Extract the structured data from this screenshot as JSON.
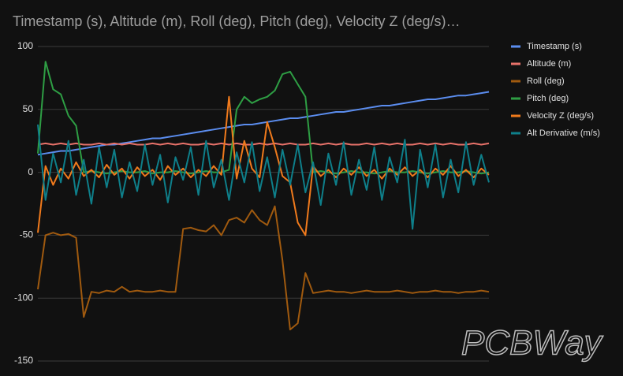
{
  "chart_data": {
    "type": "line",
    "title": "Timestamp (s), Altitude (m), Roll (deg), Pitch (deg), Velocity Z (deg/s)…",
    "ylim": [
      -150,
      100
    ],
    "yticks": [
      -150,
      -100,
      -50,
      0,
      50,
      100
    ],
    "grid": true,
    "legend": "right",
    "series": [
      {
        "name": "Timestamp (s)",
        "color": "#5b8def",
        "values": [
          14,
          15,
          16,
          17,
          17,
          18,
          19,
          20,
          21,
          22,
          22,
          23,
          24,
          25,
          26,
          27,
          27,
          28,
          29,
          30,
          31,
          32,
          33,
          34,
          35,
          36,
          37,
          38,
          38,
          39,
          40,
          41,
          42,
          43,
          43,
          44,
          45,
          46,
          47,
          48,
          48,
          49,
          50,
          51,
          52,
          53,
          53,
          54,
          55,
          56,
          57,
          58,
          58,
          59,
          60,
          61,
          61,
          62,
          63,
          64
        ]
      },
      {
        "name": "Altitude (m)",
        "color": "#e8726a",
        "values": [
          22,
          23,
          22,
          23,
          22,
          23,
          22,
          22,
          23,
          22,
          23,
          22,
          23,
          22,
          22,
          23,
          22,
          23,
          22,
          23,
          22,
          22,
          23,
          22,
          23,
          22,
          23,
          22,
          22,
          23,
          22,
          23,
          22,
          23,
          22,
          22,
          23,
          22,
          23,
          22,
          23,
          22,
          22,
          23,
          22,
          23,
          22,
          23,
          22,
          22,
          23,
          22,
          23,
          22,
          23,
          22,
          22,
          23,
          22,
          23
        ]
      },
      {
        "name": "Roll (deg)",
        "color": "#a05a0f",
        "values": [
          -93,
          -50,
          -48,
          -50,
          -49,
          -52,
          -115,
          -95,
          -96,
          -94,
          -95,
          -91,
          -95,
          -94,
          -95,
          -95,
          -94,
          -95,
          -95,
          -45,
          -44,
          -46,
          -47,
          -42,
          -50,
          -38,
          -36,
          -40,
          -30,
          -38,
          -42,
          -27,
          -70,
          -125,
          -120,
          -80,
          -96,
          -95,
          -94,
          -95,
          -95,
          -96,
          -95,
          -94,
          -95,
          -95,
          -95,
          -94,
          -95,
          -96,
          -95,
          -95,
          -94,
          -95,
          -95,
          -96,
          -95,
          -95,
          -94,
          -95
        ]
      },
      {
        "name": "Pitch (deg)",
        "color": "#2e9e44",
        "values": [
          15,
          88,
          66,
          62,
          45,
          37,
          0,
          1,
          0,
          -1,
          0,
          1,
          0,
          0,
          1,
          -1,
          0,
          0,
          1,
          0,
          -1,
          0,
          1,
          0,
          0,
          2,
          50,
          60,
          55,
          58,
          60,
          65,
          78,
          80,
          70,
          60,
          0,
          1,
          0,
          -1,
          0,
          1,
          0,
          0,
          -1,
          0,
          1,
          0,
          0,
          1,
          0,
          -1,
          0,
          1,
          0,
          0,
          1,
          0,
          -1,
          0
        ]
      },
      {
        "name": "Velocity Z (deg/s)",
        "color": "#f07a1c",
        "values": [
          -48,
          5,
          -10,
          3,
          -5,
          8,
          -3,
          2,
          -4,
          6,
          -2,
          3,
          -5,
          4,
          -3,
          2,
          -6,
          5,
          -2,
          3,
          -4,
          2,
          -3,
          5,
          -2,
          60,
          -5,
          25,
          3,
          -4,
          40,
          20,
          -3,
          -8,
          -40,
          -50,
          5,
          -3,
          2,
          -4,
          3,
          -2,
          4,
          -3,
          2,
          -5,
          3,
          -2,
          4,
          -3,
          2,
          -4,
          3,
          -2,
          5,
          -3,
          2,
          -4,
          3,
          -2
        ]
      },
      {
        "name": "Alt Derivative (m/s)",
        "color": "#0e7f8a",
        "values": [
          38,
          -22,
          15,
          -8,
          25,
          -18,
          10,
          -25,
          20,
          -12,
          18,
          -20,
          8,
          -15,
          22,
          -10,
          14,
          -24,
          12,
          -6,
          20,
          -18,
          25,
          -12,
          10,
          -22,
          16,
          -8,
          24,
          -15,
          12,
          -20,
          18,
          -10,
          22,
          -16,
          8,
          -26,
          15,
          -10,
          24,
          -18,
          10,
          -14,
          20,
          -22,
          12,
          -8,
          26,
          -45,
          18,
          -12,
          22,
          -20,
          10,
          -16,
          24,
          -10,
          14,
          -8
        ]
      }
    ]
  },
  "watermark": "PCBWay"
}
